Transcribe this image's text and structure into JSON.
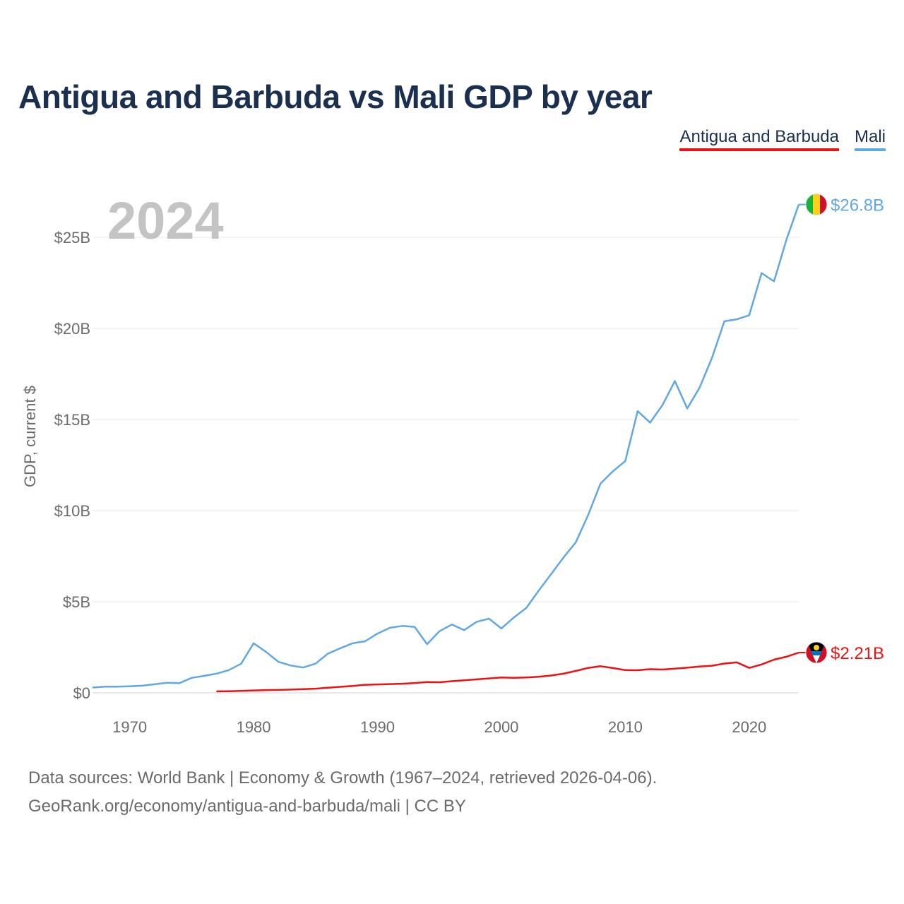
{
  "chart_data": {
    "type": "line",
    "title": "Antigua and Barbuda vs Mali GDP by year",
    "ylabel": "GDP, current $",
    "xlabel": "",
    "year_label": "2024",
    "xlim": [
      1967,
      2024
    ],
    "ylim": [
      0,
      28
    ],
    "y_ticks": [
      {
        "value": 0,
        "label": "$0"
      },
      {
        "value": 5,
        "label": "$5B"
      },
      {
        "value": 10,
        "label": "$10B"
      },
      {
        "value": 15,
        "label": "$15B"
      },
      {
        "value": 20,
        "label": "$20B"
      },
      {
        "value": 25,
        "label": "$25B"
      }
    ],
    "x_ticks": [
      {
        "value": 1970,
        "label": "1970"
      },
      {
        "value": 1980,
        "label": "1980"
      },
      {
        "value": 1990,
        "label": "1990"
      },
      {
        "value": 2000,
        "label": "2000"
      },
      {
        "value": 2010,
        "label": "2010"
      },
      {
        "value": 2020,
        "label": "2020"
      }
    ],
    "series": [
      {
        "name": "Mali",
        "color": "#62a7e2",
        "end_label": "$26.8B",
        "flag_icon": "mali-flag-icon",
        "points": [
          [
            1967,
            0.29
          ],
          [
            1968,
            0.34
          ],
          [
            1969,
            0.34
          ],
          [
            1970,
            0.36
          ],
          [
            1971,
            0.39
          ],
          [
            1972,
            0.47
          ],
          [
            1973,
            0.55
          ],
          [
            1974,
            0.53
          ],
          [
            1975,
            0.82
          ],
          [
            1976,
            0.93
          ],
          [
            1977,
            1.05
          ],
          [
            1978,
            1.25
          ],
          [
            1979,
            1.6
          ],
          [
            1980,
            2.72
          ],
          [
            1981,
            2.25
          ],
          [
            1982,
            1.7
          ],
          [
            1983,
            1.5
          ],
          [
            1984,
            1.39
          ],
          [
            1985,
            1.6
          ],
          [
            1986,
            2.15
          ],
          [
            1987,
            2.45
          ],
          [
            1988,
            2.72
          ],
          [
            1989,
            2.83
          ],
          [
            1990,
            3.25
          ],
          [
            1991,
            3.57
          ],
          [
            1992,
            3.67
          ],
          [
            1993,
            3.62
          ],
          [
            1994,
            2.67
          ],
          [
            1995,
            3.38
          ],
          [
            1996,
            3.75
          ],
          [
            1997,
            3.44
          ],
          [
            1998,
            3.9
          ],
          [
            1999,
            4.07
          ],
          [
            2000,
            3.53
          ],
          [
            2001,
            4.13
          ],
          [
            2002,
            4.65
          ],
          [
            2003,
            5.6
          ],
          [
            2004,
            6.5
          ],
          [
            2005,
            7.42
          ],
          [
            2006,
            8.25
          ],
          [
            2007,
            9.76
          ],
          [
            2008,
            11.49
          ],
          [
            2009,
            12.16
          ],
          [
            2010,
            12.72
          ],
          [
            2011,
            15.46
          ],
          [
            2012,
            14.83
          ],
          [
            2013,
            15.79
          ],
          [
            2014,
            17.11
          ],
          [
            2015,
            15.61
          ],
          [
            2016,
            16.75
          ],
          [
            2017,
            18.39
          ],
          [
            2018,
            20.39
          ],
          [
            2019,
            20.5
          ],
          [
            2020,
            20.72
          ],
          [
            2021,
            23.04
          ],
          [
            2022,
            22.58
          ],
          [
            2023,
            24.86
          ],
          [
            2024,
            26.8
          ]
        ]
      },
      {
        "name": "Antigua and Barbuda",
        "color": "#ee1111",
        "end_label": "$2.21B",
        "flag_icon": "antigua-flag-icon",
        "points": [
          [
            1977,
            0.08
          ],
          [
            1978,
            0.09
          ],
          [
            1979,
            0.11
          ],
          [
            1980,
            0.13
          ],
          [
            1981,
            0.15
          ],
          [
            1982,
            0.16
          ],
          [
            1983,
            0.18
          ],
          [
            1984,
            0.2
          ],
          [
            1985,
            0.23
          ],
          [
            1986,
            0.28
          ],
          [
            1987,
            0.33
          ],
          [
            1988,
            0.38
          ],
          [
            1989,
            0.44
          ],
          [
            1990,
            0.46
          ],
          [
            1991,
            0.48
          ],
          [
            1992,
            0.5
          ],
          [
            1993,
            0.54
          ],
          [
            1994,
            0.59
          ],
          [
            1995,
            0.58
          ],
          [
            1996,
            0.64
          ],
          [
            1997,
            0.69
          ],
          [
            1998,
            0.74
          ],
          [
            1999,
            0.79
          ],
          [
            2000,
            0.84
          ],
          [
            2001,
            0.82
          ],
          [
            2002,
            0.84
          ],
          [
            2003,
            0.88
          ],
          [
            2004,
            0.95
          ],
          [
            2005,
            1.05
          ],
          [
            2006,
            1.2
          ],
          [
            2007,
            1.37
          ],
          [
            2008,
            1.46
          ],
          [
            2009,
            1.36
          ],
          [
            2010,
            1.25
          ],
          [
            2011,
            1.24
          ],
          [
            2012,
            1.3
          ],
          [
            2013,
            1.28
          ],
          [
            2014,
            1.33
          ],
          [
            2015,
            1.38
          ],
          [
            2016,
            1.44
          ],
          [
            2017,
            1.49
          ],
          [
            2018,
            1.61
          ],
          [
            2019,
            1.67
          ],
          [
            2020,
            1.37
          ],
          [
            2021,
            1.56
          ],
          [
            2022,
            1.82
          ],
          [
            2023,
            1.98
          ],
          [
            2024,
            2.21
          ]
        ]
      }
    ]
  },
  "legend": {
    "antigua_label": "Antigua and Barbuda",
    "mali_label": "Mali"
  },
  "footer": {
    "line1": "Data sources: World Bank | Economy & Growth (1967–2024, retrieved 2026-04-06).",
    "line2": "GeoRank.org/economy/antigua-and-barbuda/mali | CC BY"
  }
}
